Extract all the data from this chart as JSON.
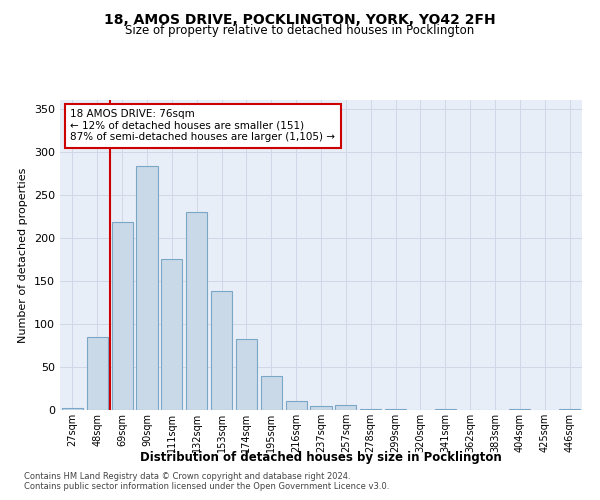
{
  "title_line1": "18, AMOS DRIVE, POCKLINGTON, YORK, YO42 2FH",
  "title_line2": "Size of property relative to detached houses in Pocklington",
  "xlabel": "Distribution of detached houses by size in Pocklington",
  "ylabel": "Number of detached properties",
  "categories": [
    "27sqm",
    "48sqm",
    "69sqm",
    "90sqm",
    "111sqm",
    "132sqm",
    "153sqm",
    "174sqm",
    "195sqm",
    "216sqm",
    "237sqm",
    "257sqm",
    "278sqm",
    "299sqm",
    "320sqm",
    "341sqm",
    "362sqm",
    "383sqm",
    "404sqm",
    "425sqm",
    "446sqm"
  ],
  "values": [
    2,
    85,
    218,
    283,
    175,
    230,
    138,
    83,
    39,
    10,
    5,
    6,
    1,
    1,
    0,
    1,
    0,
    0,
    1,
    0,
    1
  ],
  "bar_color": "#c9d9e8",
  "bar_edge_color": "#7ba7c7",
  "annotation_line1": "18 AMOS DRIVE: 76sqm",
  "annotation_line2": "← 12% of detached houses are smaller (151)",
  "annotation_line3": "87% of semi-detached houses are larger (1,105) →",
  "annotation_box_color": "#ffffff",
  "annotation_box_edge": "#cc0000",
  "vline_color": "#cc0000",
  "ylim": [
    0,
    360
  ],
  "yticks": [
    0,
    50,
    100,
    150,
    200,
    250,
    300,
    350
  ],
  "grid_color": "#d0d8e8",
  "bg_color": "#e8eef8",
  "footer1": "Contains HM Land Registry data © Crown copyright and database right 2024.",
  "footer2": "Contains public sector information licensed under the Open Government Licence v3.0."
}
